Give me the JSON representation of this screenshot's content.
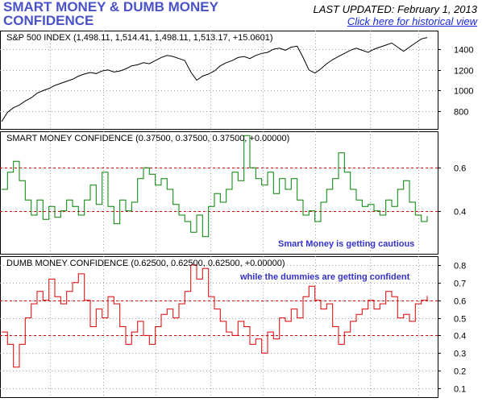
{
  "header": {
    "title": "SMART MONEY & DUMB MONEY CONFIDENCE",
    "last_updated": "LAST UPDATED:  February 1, 2013",
    "historical_link": "Click here for historical view"
  },
  "colors": {
    "title": "#4a52c8",
    "sp500_line": "#000000",
    "smart_line": "#008000",
    "dumb_line": "#e00000",
    "ref_line": "#cc0000",
    "grid": "#a0a0a0",
    "smart_note": "#3333cc",
    "dumb_note": "#3333cc",
    "link": "#1a2bd6"
  },
  "chart_data": [
    {
      "type": "line",
      "title": "S&P 500 INDEX (1,498.11, 1,514.41, 1,498.11, 1,513.17, +15.0601)",
      "y_ticks": [
        "800",
        "1000",
        "1200",
        "1400"
      ],
      "ylim": [
        630,
        1580
      ],
      "grid": true,
      "series": [
        {
          "values": [
            700,
            790,
            835,
            860,
            900,
            930,
            975,
            1000,
            1020,
            1050,
            1070,
            1090,
            1110,
            1140,
            1160,
            1175,
            1165,
            1190,
            1200,
            1180,
            1190,
            1210,
            1240,
            1250,
            1270,
            1260,
            1290,
            1320,
            1340,
            1330,
            1310,
            1290,
            1180,
            1100,
            1140,
            1160,
            1190,
            1240,
            1270,
            1290,
            1320,
            1330,
            1310,
            1340,
            1360,
            1370,
            1400,
            1410,
            1390,
            1420,
            1430,
            1320,
            1200,
            1170,
            1210,
            1260,
            1300,
            1330,
            1360,
            1390,
            1410,
            1390,
            1370,
            1400,
            1420,
            1440,
            1460,
            1420,
            1380,
            1420,
            1460,
            1500,
            1513
          ]
        }
      ]
    },
    {
      "type": "line",
      "title": "SMART MONEY CONFIDENCE (0.37500, 0.37500, 0.37500, +0.00000)",
      "y_ticks": [
        "0.4",
        "0.6"
      ],
      "ylim": [
        0.2,
        0.77
      ],
      "grid": true,
      "reference_lines": [
        0.6,
        0.4
      ],
      "annotation": "Smart Money is getting cautious",
      "series": [
        {
          "values": [
            0.5,
            0.58,
            0.63,
            0.54,
            0.45,
            0.38,
            0.45,
            0.36,
            0.42,
            0.37,
            0.4,
            0.45,
            0.42,
            0.38,
            0.45,
            0.52,
            0.43,
            0.58,
            0.42,
            0.34,
            0.45,
            0.4,
            0.44,
            0.55,
            0.6,
            0.57,
            0.52,
            0.55,
            0.5,
            0.43,
            0.38,
            0.35,
            0.3,
            0.38,
            0.28,
            0.42,
            0.48,
            0.44,
            0.5,
            0.58,
            0.54,
            0.75,
            0.6,
            0.55,
            0.52,
            0.58,
            0.48,
            0.55,
            0.5,
            0.55,
            0.45,
            0.38,
            0.4,
            0.35,
            0.44,
            0.5,
            0.55,
            0.67,
            0.58,
            0.5,
            0.45,
            0.42,
            0.43,
            0.4,
            0.38,
            0.45,
            0.42,
            0.5,
            0.54,
            0.44,
            0.38,
            0.35,
            0.375
          ]
        }
      ]
    },
    {
      "type": "line",
      "title": "DUMB MONEY CONFIDENCE (0.62500, 0.62500, 0.62500, +0.00000)",
      "y_ticks": [
        "0.1",
        "0.2",
        "0.3",
        "0.4",
        "0.5",
        "0.6",
        "0.7",
        "0.8"
      ],
      "ylim": [
        0.05,
        0.85
      ],
      "grid": true,
      "reference_lines": [
        0.6,
        0.4
      ],
      "annotation": "while the dummies are getting confident",
      "series": [
        {
          "values": [
            0.42,
            0.35,
            0.22,
            0.35,
            0.5,
            0.58,
            0.65,
            0.6,
            0.72,
            0.62,
            0.58,
            0.65,
            0.7,
            0.75,
            0.6,
            0.45,
            0.55,
            0.5,
            0.62,
            0.58,
            0.45,
            0.35,
            0.42,
            0.48,
            0.4,
            0.35,
            0.45,
            0.52,
            0.55,
            0.5,
            0.58,
            0.65,
            0.8,
            0.72,
            0.78,
            0.62,
            0.55,
            0.48,
            0.42,
            0.4,
            0.48,
            0.45,
            0.35,
            0.38,
            0.3,
            0.42,
            0.38,
            0.5,
            0.48,
            0.55,
            0.5,
            0.62,
            0.68,
            0.6,
            0.55,
            0.58,
            0.45,
            0.35,
            0.42,
            0.48,
            0.52,
            0.55,
            0.6,
            0.55,
            0.58,
            0.65,
            0.62,
            0.5,
            0.52,
            0.48,
            0.58,
            0.6,
            0.625
          ]
        }
      ]
    }
  ]
}
